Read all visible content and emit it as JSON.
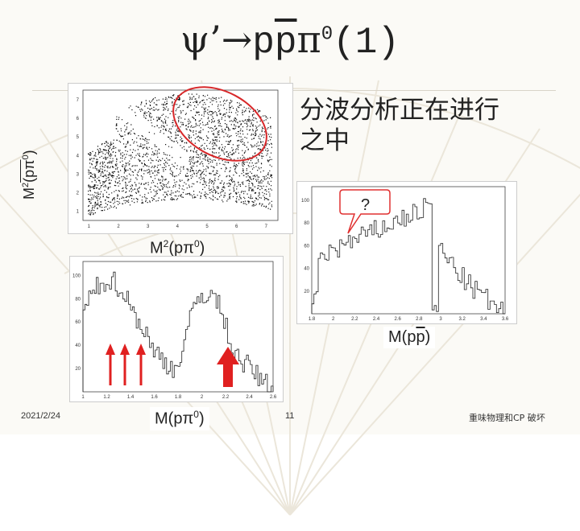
{
  "slide": {
    "title_psi": "ψ’→",
    "title_p1": "p",
    "title_p2": "p",
    "title_pi": "π",
    "title_sup": "0",
    "title_tail": "(1)",
    "chinese_text_line1": "分波分析正在进行",
    "chinese_text_line2": "之中",
    "question": "?",
    "ylabel_m2": "M",
    "ylabel_sup2": "2",
    "ylabel_rest": "(pπ",
    "ylabel_sup0": "0",
    "ylabel_close": ")",
    "xlabel_m2": "M",
    "xlabel_sup2": "2",
    "xlabel_rest": "(pπ",
    "xlabel_sup0": "0",
    "xlabel_close": ")",
    "label_mpp_prefix": "M(",
    "label_mpp_p1": "p",
    "label_mpp_p2": "p",
    "label_mpp_close": ")",
    "label_mppi_prefix": "M(pπ",
    "label_mppi_sup": "0",
    "label_mppi_close": ")",
    "footer_date": "2021/2/24",
    "footer_page": "11",
    "footer_right": "重味物理和CP 破坏"
  },
  "dalitz": {
    "x_ticks": [
      "1",
      "2",
      "3",
      "4",
      "5",
      "6",
      "7"
    ],
    "y_ticks": [
      "1",
      "2",
      "3",
      "4",
      "5",
      "6",
      "7"
    ]
  },
  "hist_pp": {
    "x_ticks": [
      "1.8",
      "2",
      "2.2",
      "2.4",
      "2.6",
      "2.8",
      "3",
      "3.2",
      "3.4",
      "3.6"
    ],
    "y_ticks": [
      "20",
      "40",
      "60",
      "80",
      "100"
    ]
  },
  "hist_ppi": {
    "x_ticks": [
      "1",
      "1.2",
      "1.4",
      "1.6",
      "1.8",
      "2",
      "2.2",
      "2.4",
      "2.6"
    ],
    "y_ticks": [
      "20",
      "40",
      "60",
      "80",
      "100"
    ]
  },
  "colors": {
    "ellipse": "#d8282a",
    "arrow": "#e02020",
    "bubble": "#e03030"
  }
}
